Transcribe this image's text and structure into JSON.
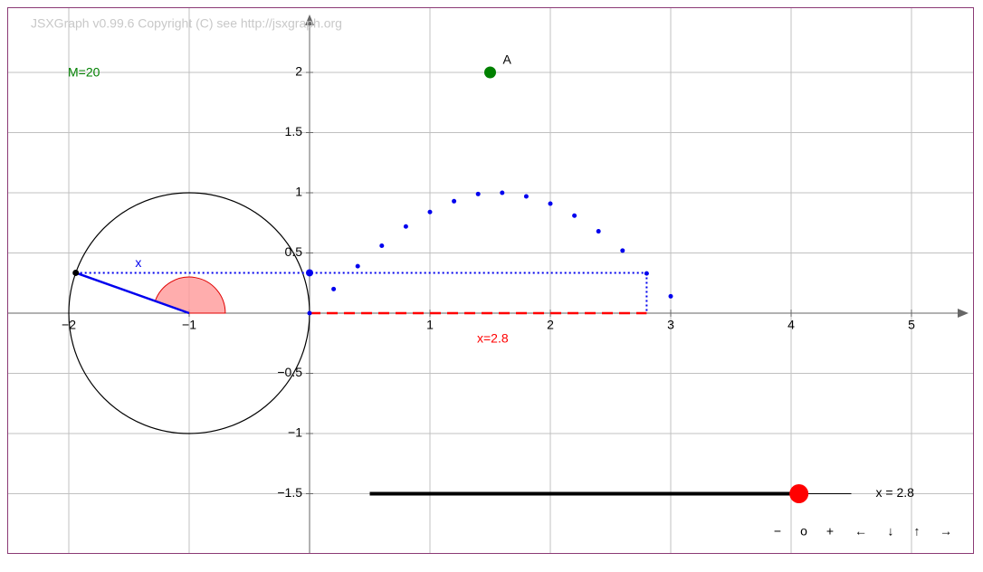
{
  "board": {
    "copyright": "JSXGraph v0.99.6 Copyright (C) see http://jsxgraph.org",
    "xticks": [
      {
        "value": -2,
        "label": "−2"
      },
      {
        "value": -1,
        "label": "−1"
      },
      1,
      2,
      3,
      4,
      5
    ],
    "yticks": [
      2,
      1.5,
      1,
      0.5,
      {
        "value": -0.5,
        "label": "−0.5"
      },
      {
        "value": -1,
        "label": "−1"
      },
      {
        "value": -1.5,
        "label": "−1.5"
      }
    ],
    "circle": {
      "center": [
        -1,
        0
      ],
      "radius": 1
    },
    "angle_label": "x",
    "m_text": "M=20",
    "x_text": "x=2.8",
    "point_a": {
      "label": "A",
      "x": 1.5,
      "y": 2
    },
    "curve_points": {
      "x": [
        0.2,
        0.4,
        0.6,
        0.8,
        1.0,
        1.2,
        1.4,
        1.6,
        1.8,
        2.0,
        2.2,
        2.4,
        2.6,
        2.8,
        3.0
      ],
      "y": [
        0.2,
        0.39,
        0.56,
        0.72,
        0.84,
        0.93,
        0.99,
        1.0,
        0.97,
        0.91,
        0.81,
        0.68,
        0.52,
        0.33,
        0.14
      ]
    },
    "slider": {
      "label": "x = 2.8",
      "value": 2.8,
      "min": 0,
      "max": 3.1416
    },
    "navigation": [
      "−",
      "o",
      "+",
      "←",
      "↓",
      "↑",
      "→"
    ]
  }
}
